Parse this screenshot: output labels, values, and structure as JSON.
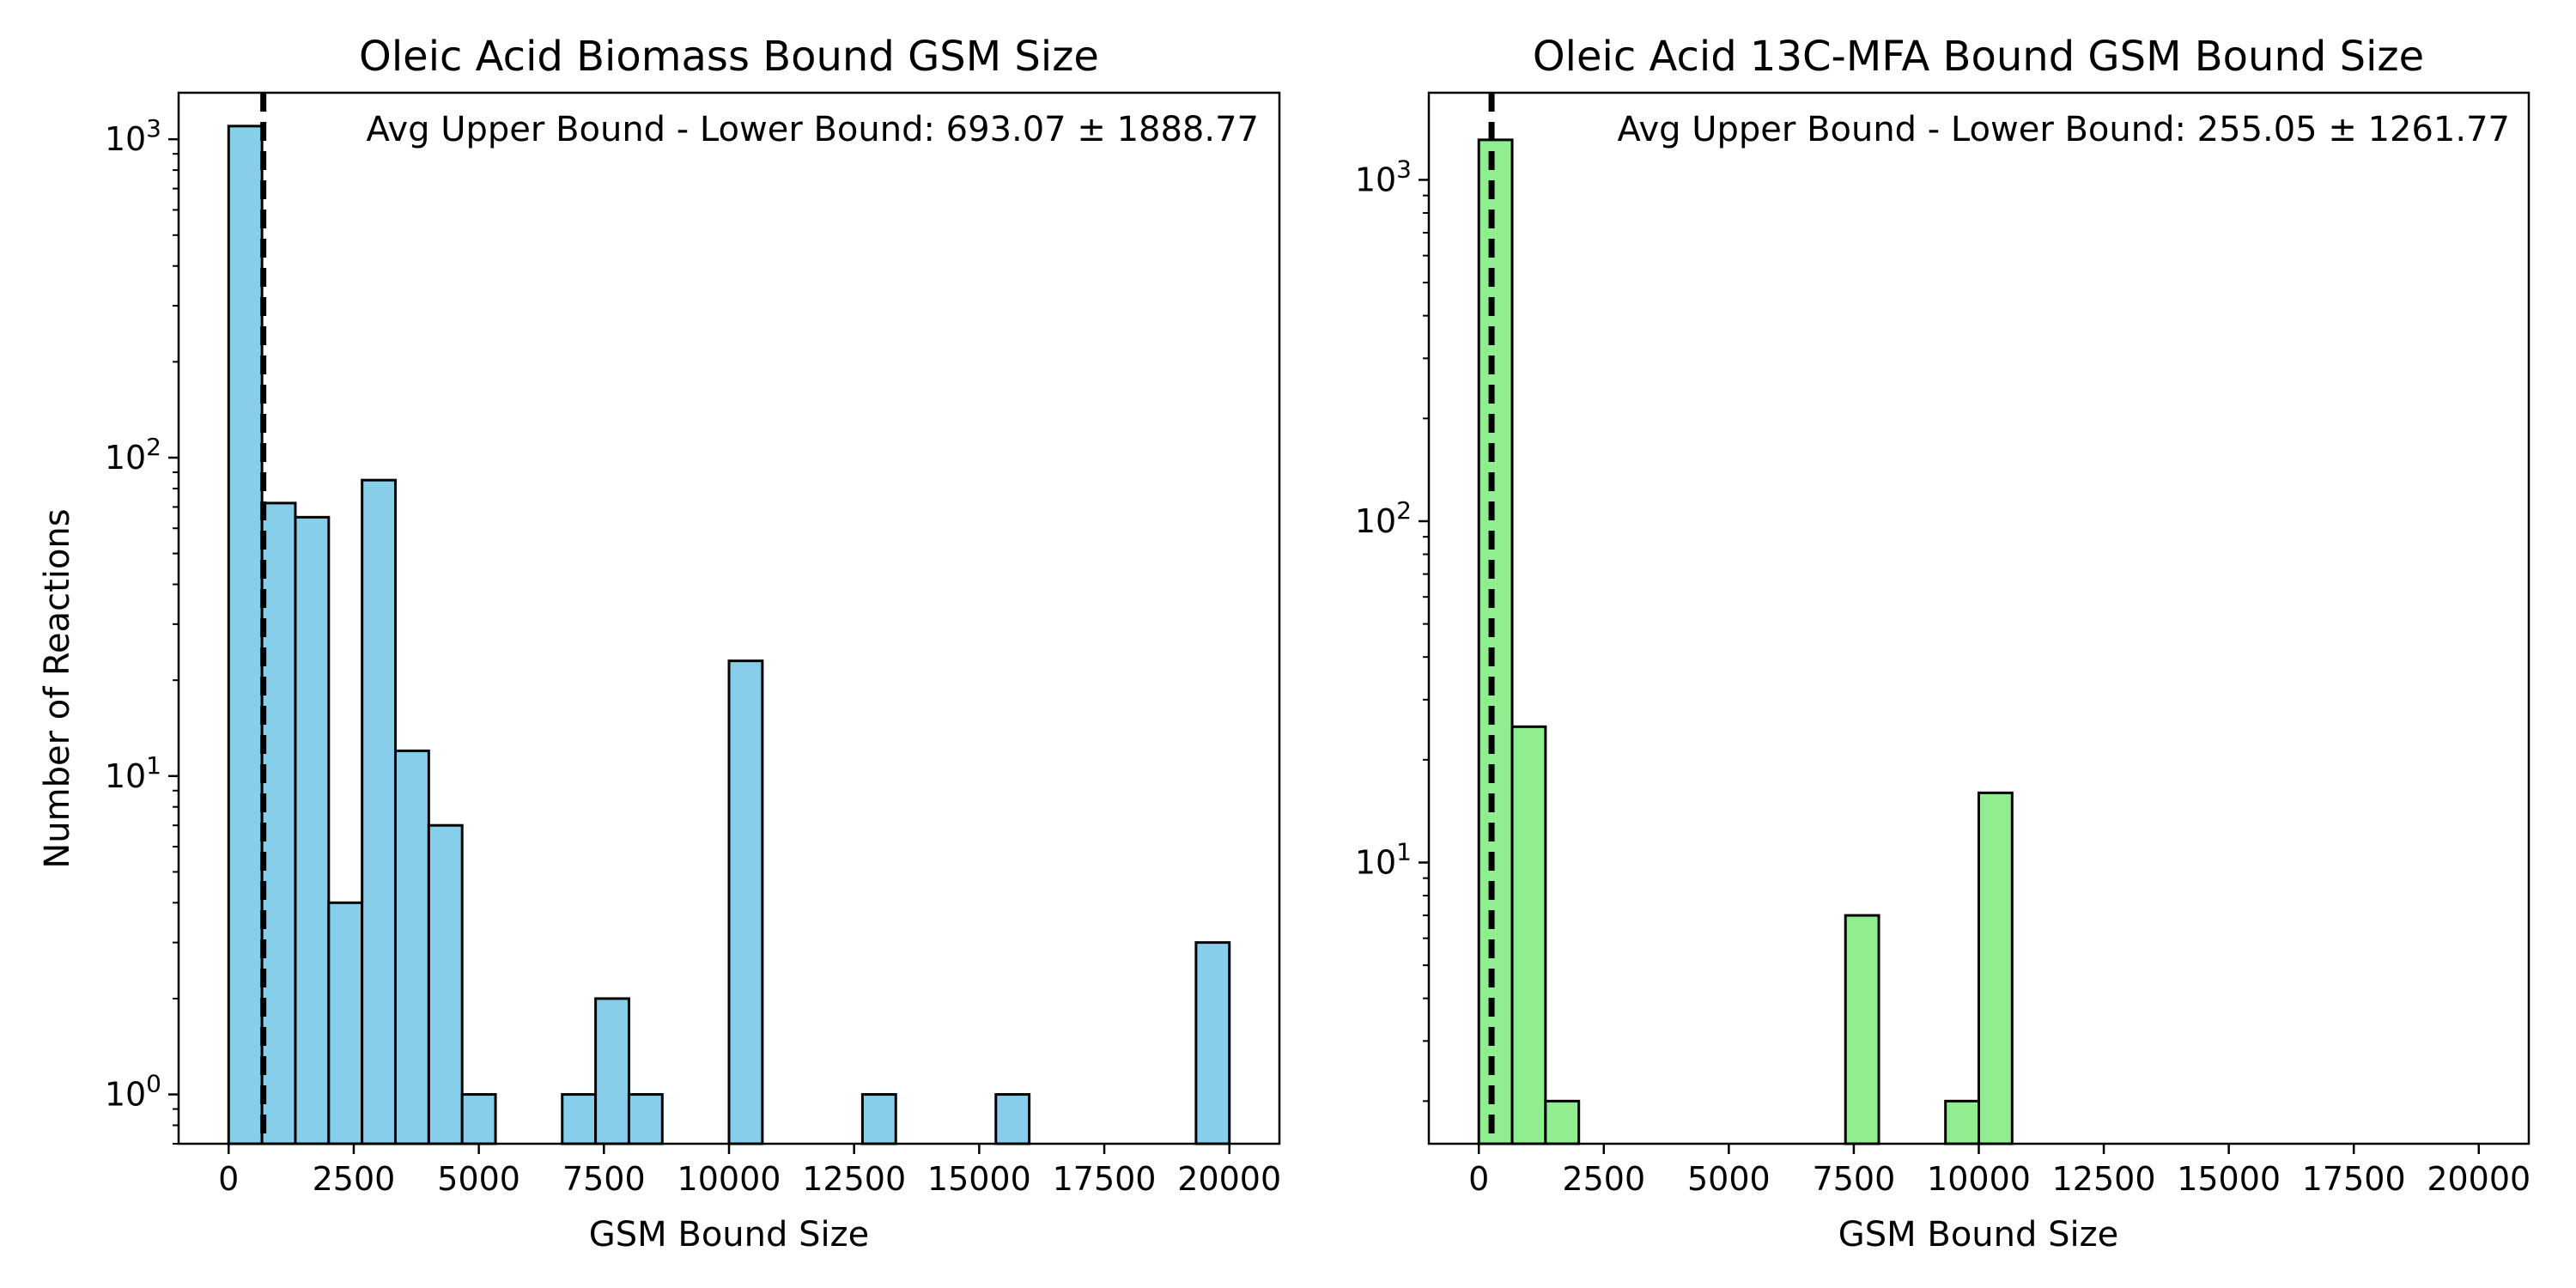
{
  "figure": {
    "background": "#ffffff"
  },
  "chart_data": [
    {
      "type": "bar",
      "subtype": "histogram",
      "title": "Oleic Acid Biomass Bound GSM Size",
      "xlabel": "GSM Bound Size",
      "ylabel": "Number of Reactions",
      "xlim": [
        -1000,
        21000
      ],
      "ylim": [
        0.7,
        1400
      ],
      "y_scale": "log",
      "grid": false,
      "bar_color": "#87ceeb",
      "edge_color": "#000000",
      "bin_width": 666.67,
      "bins": [
        {
          "x0": 0,
          "count": 1100
        },
        {
          "x0": 666.67,
          "count": 72
        },
        {
          "x0": 1333.33,
          "count": 65
        },
        {
          "x0": 2000,
          "count": 4
        },
        {
          "x0": 2666.67,
          "count": 85
        },
        {
          "x0": 3333.33,
          "count": 12
        },
        {
          "x0": 4000,
          "count": 7
        },
        {
          "x0": 4666.67,
          "count": 1
        },
        {
          "x0": 6666.67,
          "count": 1
        },
        {
          "x0": 7333.33,
          "count": 2
        },
        {
          "x0": 8000,
          "count": 1
        },
        {
          "x0": 10000,
          "count": 23
        },
        {
          "x0": 12666.67,
          "count": 1
        },
        {
          "x0": 15333.33,
          "count": 1
        },
        {
          "x0": 19333.33,
          "count": 3
        }
      ],
      "mean_line": {
        "x": 693.07,
        "style": "dashed",
        "color": "#000000"
      },
      "annotation": "Avg Upper Bound - Lower Bound: 693.07 ± 1888.77",
      "x_ticks": [
        0,
        2500,
        5000,
        7500,
        10000,
        12500,
        15000,
        17500,
        20000
      ],
      "x_tick_labels": [
        "0",
        "2500",
        "5000",
        "7500",
        "10000",
        "12500",
        "15000",
        "17500",
        "20000"
      ],
      "y_ticks": [
        {
          "value": 1,
          "base": "10",
          "exp": "0"
        },
        {
          "value": 10,
          "base": "10",
          "exp": "1"
        },
        {
          "value": 100,
          "base": "10",
          "exp": "2"
        },
        {
          "value": 1000,
          "base": "10",
          "exp": "3"
        }
      ]
    },
    {
      "type": "bar",
      "subtype": "histogram",
      "title": "Oleic Acid 13C-MFA Bound GSM Bound Size",
      "xlabel": "GSM Bound Size",
      "ylabel": "",
      "xlim": [
        -1000,
        21000
      ],
      "ylim": [
        1.5,
        1800
      ],
      "y_scale": "log",
      "grid": false,
      "bar_color": "#90ee90",
      "edge_color": "#000000",
      "bin_width": 666.67,
      "bins": [
        {
          "x0": 0,
          "count": 1310
        },
        {
          "x0": 666.67,
          "count": 25
        },
        {
          "x0": 1333.33,
          "count": 2
        },
        {
          "x0": 7333.33,
          "count": 7
        },
        {
          "x0": 9333.33,
          "count": 2
        },
        {
          "x0": 10000,
          "count": 16
        }
      ],
      "mean_line": {
        "x": 255.05,
        "style": "dashed",
        "color": "#000000"
      },
      "annotation": "Avg Upper Bound - Lower Bound: 255.05 ± 1261.77",
      "x_ticks": [
        0,
        2500,
        5000,
        7500,
        10000,
        12500,
        15000,
        17500,
        20000
      ],
      "x_tick_labels": [
        "0",
        "2500",
        "5000",
        "7500",
        "10000",
        "12500",
        "15000",
        "17500",
        "20000"
      ],
      "y_ticks": [
        {
          "value": 10,
          "base": "10",
          "exp": "1"
        },
        {
          "value": 100,
          "base": "10",
          "exp": "2"
        },
        {
          "value": 1000,
          "base": "10",
          "exp": "3"
        }
      ]
    }
  ]
}
